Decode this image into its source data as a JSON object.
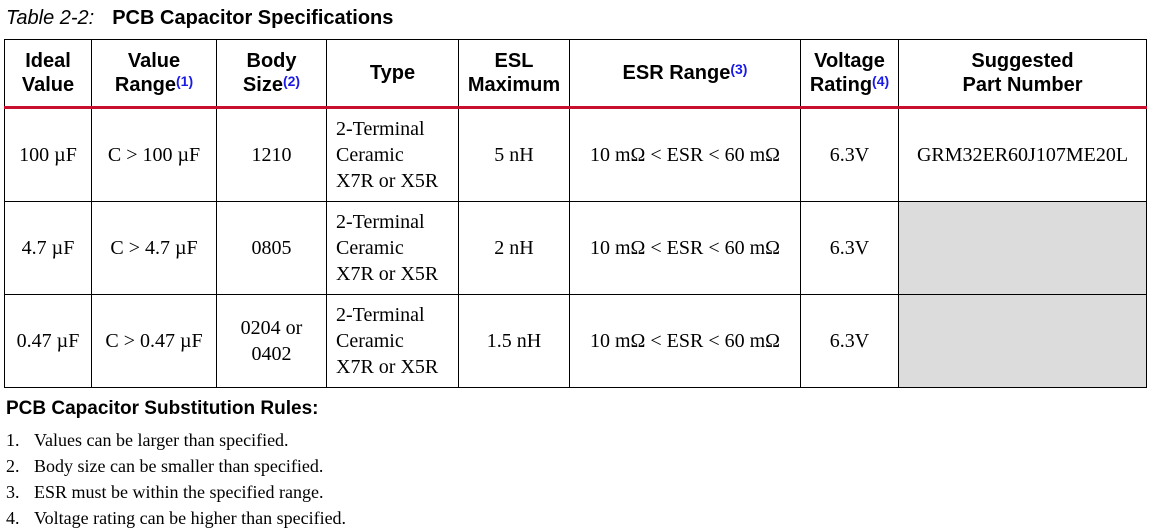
{
  "caption": {
    "label": "Table 2-2:",
    "title": "PCB Capacitor Specifications"
  },
  "table": {
    "headers": [
      {
        "line1": "Ideal",
        "line2": "Value",
        "ref": ""
      },
      {
        "line1": "Value",
        "line2": "Range",
        "ref": "(1)"
      },
      {
        "line1": "Body",
        "line2": "Size",
        "ref": "(2)"
      },
      {
        "line1": "",
        "line2": "Type",
        "ref": ""
      },
      {
        "line1": "ESL",
        "line2": "Maximum",
        "ref": ""
      },
      {
        "line1": "",
        "line2": "ESR Range",
        "ref": "(3)"
      },
      {
        "line1": "Voltage",
        "line2": "Rating",
        "ref": "(4)"
      },
      {
        "line1": "Suggested",
        "line2": "Part Number",
        "ref": ""
      }
    ],
    "rows": [
      {
        "ideal": "100 µF",
        "range": "C > 100 µF",
        "size_l1": "1210",
        "size_l2": "",
        "type_l1": "2-Terminal",
        "type_l2": "Ceramic",
        "type_l3": "X7R or X5R",
        "esl": "5 nH",
        "esr": "10 mΩ < ESR < 60 mΩ",
        "voltage": "6.3V",
        "part": "GRM32ER60J107ME20L"
      },
      {
        "ideal": "4.7 µF",
        "range": "C > 4.7 µF",
        "size_l1": "0805",
        "size_l2": "",
        "type_l1": "2-Terminal",
        "type_l2": "Ceramic",
        "type_l3": "X7R or X5R",
        "esl": "2 nH",
        "esr": "10 mΩ < ESR < 60 mΩ",
        "voltage": "6.3V",
        "part": ""
      },
      {
        "ideal": "0.47 µF",
        "range": "C > 0.47 µF",
        "size_l1": "0204 or",
        "size_l2": "0402",
        "type_l1": "2-Terminal",
        "type_l2": "Ceramic",
        "type_l3": "X7R or X5R",
        "esl": "1.5 nH",
        "esr": "10 mΩ < ESR < 60 mΩ",
        "voltage": "6.3V",
        "part": ""
      }
    ]
  },
  "rules": {
    "heading": "PCB Capacitor Substitution Rules:",
    "items": [
      {
        "num": "1.",
        "text": "Values can be larger than specified."
      },
      {
        "num": "2.",
        "text": "Body size can be smaller than specified."
      },
      {
        "num": "3.",
        "text": "ESR must be within the specified range."
      },
      {
        "num": "4.",
        "text": "Voltage rating can be higher than specified."
      }
    ]
  }
}
